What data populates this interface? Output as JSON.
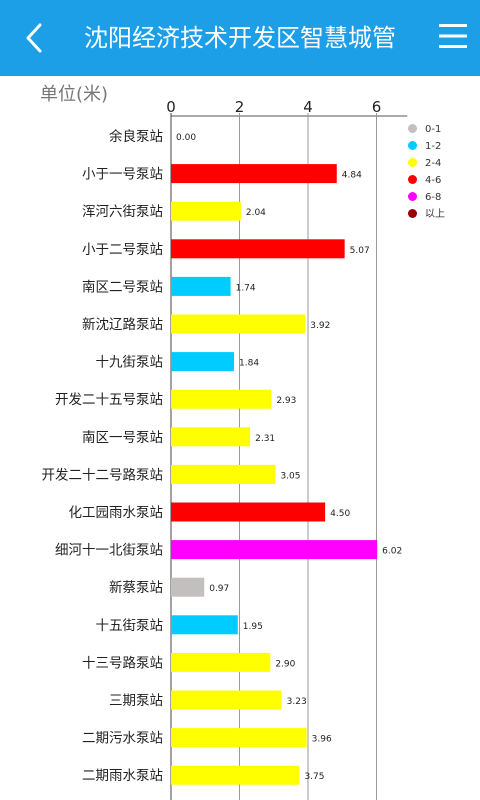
{
  "header": {
    "title": "沈阳经济技术开发区智慧城管",
    "back_icon": "chevron-left-icon",
    "menu_icon": "hamburger-menu-icon",
    "background_color": "#1c9fe6"
  },
  "unit_label": "单位(米)",
  "legend": [
    {
      "label": "0-1",
      "color": "#c3bfbf"
    },
    {
      "label": "1-2",
      "color": "#00ccff"
    },
    {
      "label": "2-4",
      "color": "#ffff00"
    },
    {
      "label": "4-6",
      "color": "#ff0000"
    },
    {
      "label": "6-8",
      "color": "#ff00ff"
    },
    {
      "label": "以上",
      "color": "#990000"
    }
  ],
  "chart_data": {
    "type": "bar",
    "orientation": "horizontal",
    "xlim": [
      0,
      6.9
    ],
    "xticks": [
      "0",
      "2",
      "4",
      "6"
    ],
    "grid": true,
    "legend_position": "right",
    "categories": [
      "余良泵站",
      "小于一号泵站",
      "浑河六街泵站",
      "小于二号泵站",
      "南区二号泵站",
      "新沈辽路泵站",
      "十九街泵站",
      "开发二十五号泵站",
      "南区一号泵站",
      "开发二十二号路泵站",
      "化工园雨水泵站",
      "细河十一北街泵站",
      "新蔡泵站",
      "十五街泵站",
      "十三号路泵站",
      "三期泵站",
      "二期污水泵站",
      "二期雨水泵站"
    ],
    "values": [
      0.0,
      4.84,
      2.04,
      5.07,
      1.74,
      3.92,
      1.84,
      2.93,
      2.31,
      3.05,
      4.5,
      6.02,
      0.97,
      1.95,
      2.9,
      3.23,
      3.96,
      3.75
    ],
    "value_labels": [
      "0.00",
      "4.84",
      "2.04",
      "5.07",
      "1.74",
      "3.92",
      "1.84",
      "2.93",
      "2.31",
      "3.05",
      "4.50",
      "6.02",
      "0.97",
      "1.95",
      "2.90",
      "3.23",
      "3.96",
      "3.75"
    ],
    "bar_colors": [
      "#c3bfbf",
      "#ff0000",
      "#ffff00",
      "#ff0000",
      "#00ccff",
      "#ffff00",
      "#00ccff",
      "#ffff00",
      "#ffff00",
      "#ffff00",
      "#ff0000",
      "#ff00ff",
      "#c3bfbf",
      "#00ccff",
      "#ffff00",
      "#ffff00",
      "#ffff00",
      "#ffff00"
    ]
  }
}
